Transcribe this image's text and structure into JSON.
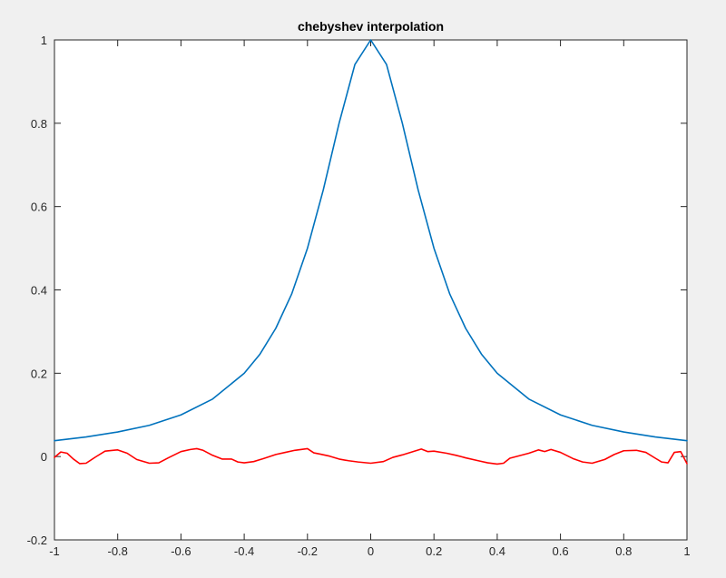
{
  "chart_data": {
    "type": "line",
    "title": "chebyshev interpolation",
    "xlabel": "",
    "ylabel": "",
    "xlim": [
      -1,
      1
    ],
    "ylim": [
      -0.2,
      1
    ],
    "grid": false,
    "x_ticks": [
      "-1",
      "-0.8",
      "-0.6",
      "-0.4",
      "-0.2",
      "0",
      "0.2",
      "0.4",
      "0.6",
      "0.8",
      "1"
    ],
    "y_ticks": [
      "-0.2",
      "0",
      "0.2",
      "0.4",
      "0.6",
      "0.8",
      "1"
    ],
    "x_tick_values": [
      -1,
      -0.8,
      -0.6,
      -0.4,
      -0.2,
      0,
      0.2,
      0.4,
      0.6,
      0.8,
      1
    ],
    "y_tick_values": [
      -0.2,
      0,
      0.2,
      0.4,
      0.6,
      0.8,
      1
    ],
    "series": [
      {
        "color": "#0072bd",
        "x": [
          -1,
          -0.9,
          -0.8,
          -0.7,
          -0.6,
          -0.5,
          -0.4,
          -0.35,
          -0.3,
          -0.25,
          -0.2,
          -0.15,
          -0.1,
          -0.05,
          0,
          0.05,
          0.1,
          0.15,
          0.2,
          0.25,
          0.3,
          0.35,
          0.4,
          0.5,
          0.6,
          0.7,
          0.8,
          0.9,
          1
        ],
        "y": [
          0.038,
          0.047,
          0.059,
          0.075,
          0.1,
          0.138,
          0.2,
          0.246,
          0.308,
          0.39,
          0.5,
          0.64,
          0.8,
          0.941,
          1,
          0.941,
          0.8,
          0.64,
          0.5,
          0.39,
          0.308,
          0.246,
          0.2,
          0.138,
          0.1,
          0.075,
          0.059,
          0.047,
          0.038
        ]
      },
      {
        "color": "#ff0000",
        "x": [
          -1,
          -0.98,
          -0.96,
          -0.94,
          -0.92,
          -0.9,
          -0.87,
          -0.84,
          -0.8,
          -0.77,
          -0.74,
          -0.7,
          -0.67,
          -0.64,
          -0.6,
          -0.57,
          -0.55,
          -0.53,
          -0.5,
          -0.47,
          -0.44,
          -0.42,
          -0.4,
          -0.37,
          -0.34,
          -0.3,
          -0.27,
          -0.24,
          -0.2,
          -0.18,
          -0.16,
          -0.13,
          -0.1,
          -0.07,
          -0.04,
          0,
          0.04,
          0.07,
          0.1,
          0.13,
          0.16,
          0.18,
          0.2,
          0.24,
          0.27,
          0.3,
          0.34,
          0.37,
          0.4,
          0.42,
          0.44,
          0.47,
          0.5,
          0.53,
          0.55,
          0.57,
          0.6,
          0.64,
          0.67,
          0.7,
          0.74,
          0.77,
          0.8,
          0.84,
          0.87,
          0.9,
          0.92,
          0.94,
          0.96,
          0.98,
          1
        ],
        "y": [
          -0.002,
          0.011,
          0.008,
          -0.006,
          -0.017,
          -0.016,
          -0.001,
          0.013,
          0.016,
          0.008,
          -0.007,
          -0.016,
          -0.015,
          -0.003,
          0.012,
          0.017,
          0.019,
          0.015,
          0.003,
          -0.006,
          -0.006,
          -0.013,
          -0.015,
          -0.012,
          -0.005,
          0.005,
          0.01,
          0.015,
          0.019,
          0.009,
          0.006,
          0.001,
          -0.006,
          -0.01,
          -0.013,
          -0.016,
          -0.012,
          -0.002,
          0.004,
          0.011,
          0.018,
          0.012,
          0.013,
          0.008,
          0.003,
          -0.003,
          -0.01,
          -0.015,
          -0.018,
          -0.016,
          -0.004,
          0.002,
          0.008,
          0.016,
          0.012,
          0.017,
          0.01,
          -0.005,
          -0.013,
          -0.016,
          -0.007,
          0.005,
          0.014,
          0.015,
          0.01,
          -0.004,
          -0.013,
          -0.015,
          0.01,
          0.012,
          -0.017
        ]
      }
    ]
  }
}
